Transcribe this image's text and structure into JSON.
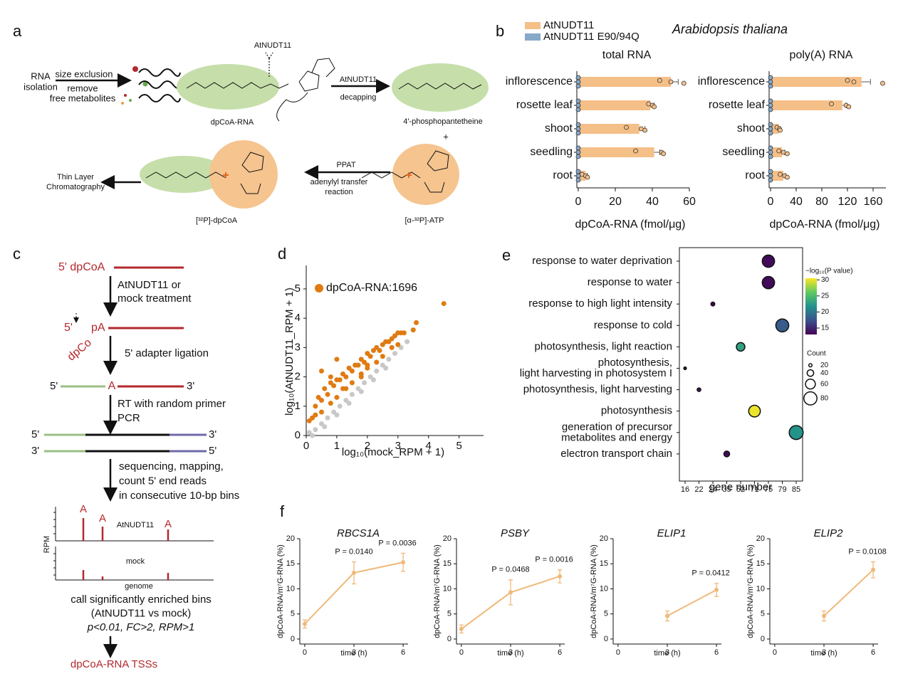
{
  "panel_labels": [
    "a",
    "b",
    "c",
    "d",
    "e",
    "f"
  ],
  "panel_a": {
    "rna_isolation": [
      "RNA",
      "isolation"
    ],
    "size_exclusion": "size exclusion",
    "remove_free_metabolites": [
      "remove",
      "free metabolites"
    ],
    "enzyme_top": "AtNUDT11",
    "dpcoa_rna": "dpCoA-RNA",
    "enzyme_arrow": "AtNUDT11",
    "decapping": "decapping",
    "product": "4'-phosphopantetheine",
    "plus": "+",
    "tlc": [
      "Thin Layer",
      "Chromatography"
    ],
    "ppat": "PPAT",
    "reaction": [
      "adenylyl transfer",
      "reaction"
    ],
    "labeled_dpcoa": "[³²P]-dpCoA",
    "labeled_atp": "[α-³²P]-ATP"
  },
  "panel_b_title": "Arabidopsis thaliana",
  "panel_c": {
    "start": "5' dpCoA",
    "step1": [
      "AtNUDT11 or",
      "mock treatment"
    ],
    "cap_5": "5'",
    "cap_dpco": "dpCo",
    "cap_pa": "pA",
    "step2": "5' adapter ligation",
    "lig_5": "5'",
    "lig_a": "A",
    "lig_3": "3'",
    "step3": [
      "RT with random primer",
      "PCR"
    ],
    "ds_top_5": "5'",
    "ds_top_3": "3'",
    "ds_bot_3": "3'",
    "ds_bot_5": "5'",
    "step4": [
      "sequencing, mapping,",
      "count 5' end reads",
      "in consecutive 10-bp bins"
    ],
    "peak_labels": [
      "A",
      "A",
      "A"
    ],
    "track1": "AtNUDT11",
    "ylabel": "RPM",
    "track2": "mock",
    "xlabel": "genome",
    "step5": [
      "call significantly enriched bins",
      "(AtNUDT11 vs mock)",
      "p<0.01, FC>2, RPM>1"
    ],
    "result": "dpCoA-RNA TSSs"
  },
  "chart_data": [
    {
      "type": "bar",
      "orientation": "horizontal",
      "title": "total RNA",
      "xlabel": "dpCoA-RNA (fmol/μg)",
      "categories": [
        "inflorescence",
        "rosette leaf",
        "shoot",
        "seedling",
        "root"
      ],
      "series": [
        {
          "name": "AtNUDT11",
          "color": "#f5bf88",
          "values": [
            50,
            39,
            33,
            41,
            4
          ],
          "errors": [
            4,
            2,
            3,
            3,
            1
          ],
          "points": [
            [
              44,
              50,
              57
            ],
            [
              38,
              40,
              41
            ],
            [
              26,
              34,
              36
            ],
            [
              31,
              45,
              46
            ],
            [
              2,
              4,
              5
            ]
          ]
        },
        {
          "name": "AtNUDT11 E90/94Q",
          "color": "#86a8c9",
          "values": [
            0,
            0,
            0,
            0,
            0
          ],
          "points": [
            [
              0,
              0,
              0
            ],
            [
              0,
              0,
              0
            ],
            [
              0,
              0,
              0
            ],
            [
              0,
              0,
              0
            ],
            [
              0,
              0,
              0
            ]
          ]
        }
      ],
      "xlim": [
        0,
        60
      ],
      "xticks": [
        0,
        20,
        40,
        60
      ]
    },
    {
      "type": "bar",
      "orientation": "horizontal",
      "title": "poly(A) RNA",
      "xlabel": "dpCoA-RNA (fmol/μg)",
      "categories": [
        "inflorescence",
        "rosette leaf",
        "shoot",
        "seedling",
        "root"
      ],
      "series": [
        {
          "color": "#f5bf88",
          "values": [
            142,
            112,
            13,
            18,
            20
          ],
          "errors": [
            14,
            6,
            2,
            4,
            3
          ],
          "points": [
            [
              120,
              130,
              175
            ],
            [
              95,
              118,
              122
            ],
            [
              10,
              14,
              15
            ],
            [
              13,
              20,
              26
            ],
            [
              15,
              22,
              26
            ]
          ]
        },
        {
          "color": "#86a8c9",
          "values": [
            0,
            0,
            0,
            0,
            0
          ],
          "points": [
            [
              0,
              0,
              0
            ],
            [
              0,
              0,
              0
            ],
            [
              0,
              0,
              0
            ],
            [
              0,
              0,
              0
            ],
            [
              0,
              0,
              0
            ]
          ]
        }
      ],
      "xlim": [
        0,
        180
      ],
      "xticks": [
        0,
        40,
        80,
        120,
        160
      ]
    },
    {
      "type": "scatter",
      "xlabel": "log₁₀(mock_RPM + 1)",
      "ylabel": "log₁₀(AtNUDT11_RPM + 1)",
      "series": [
        {
          "name": "dpCoA-RNA:1696",
          "color": "#e07b12",
          "x": [
            0.3,
            0.4,
            0.5,
            0.6,
            0.7,
            0.8,
            0.9,
            1.0,
            1.1,
            1.2,
            1.3,
            1.4,
            1.5,
            1.6,
            1.7,
            1.8,
            1.9,
            2.0,
            2.1,
            2.2,
            2.3,
            2.4,
            2.5,
            2.6,
            2.7,
            2.8,
            2.9,
            3.0,
            3.1,
            3.2,
            0.5,
            0.8,
            1.0,
            1.2,
            1.5,
            1.8,
            2.0,
            3.5,
            3.6,
            4.5,
            0.2,
            0.5,
            1.0,
            1.5,
            2.0,
            2.5,
            3.0,
            0.1,
            0.3,
            0.8,
            1.3,
            1.8,
            2.3,
            2.8
          ],
          "y": [
            1.0,
            1.3,
            1.2,
            1.6,
            1.4,
            1.8,
            1.7,
            1.9,
            1.9,
            2.1,
            2.0,
            2.3,
            2.2,
            2.4,
            2.4,
            2.6,
            2.5,
            2.8,
            2.7,
            2.9,
            3.0,
            2.9,
            3.1,
            3.2,
            3.2,
            3.3,
            3.4,
            3.5,
            3.5,
            3.5,
            2.2,
            2.0,
            2.6,
            1.6,
            1.8,
            2.1,
            2.4,
            3.6,
            3.85,
            4.5,
            0.6,
            0.8,
            1.3,
            1.8,
            2.3,
            2.7,
            3.1,
            0.5,
            0.7,
            1.1,
            1.6,
            2.0,
            2.5,
            3.0
          ]
        },
        {
          "color": "#c8c8c8",
          "x": [
            0.1,
            0.3,
            0.5,
            0.7,
            0.9,
            1.1,
            1.3,
            1.5,
            1.7,
            1.9,
            2.1,
            2.3,
            2.5,
            2.7,
            2.9,
            3.1,
            3.3,
            0.2,
            0.6,
            1.0,
            1.4,
            1.8,
            2.2,
            2.6
          ],
          "y": [
            0.1,
            0.2,
            0.4,
            0.6,
            0.8,
            1.0,
            1.2,
            1.4,
            1.6,
            1.8,
            2.0,
            2.2,
            2.4,
            2.6,
            2.8,
            3.0,
            3.2,
            0.0,
            0.3,
            0.7,
            1.1,
            1.5,
            1.9,
            2.3
          ]
        }
      ],
      "xlim": [
        0,
        5.8
      ],
      "ylim": [
        0,
        5.8
      ],
      "xticks": [
        0,
        1,
        2,
        3,
        4,
        5
      ],
      "yticks": [
        0,
        1,
        2,
        3,
        4,
        5
      ]
    },
    {
      "type": "bubble",
      "categories": [
        [
          "response to water deprivation"
        ],
        [
          "response to water"
        ],
        [
          "response to high light intensity"
        ],
        [
          "response to cold"
        ],
        [
          "photosynthesis, light reaction"
        ],
        [
          "photosynthesis,",
          "light harvesting in photosystem I"
        ],
        [
          "photosynthesis, light harvesting"
        ],
        [
          "photosynthesis"
        ],
        [
          "generation of precursor",
          "metabolites and energy"
        ],
        [
          "electron transport chain"
        ]
      ],
      "x": [
        75,
        75,
        24,
        79,
        52,
        16,
        22,
        71,
        85,
        35
      ],
      "pvalues": [
        13.5,
        13.5,
        13.2,
        18,
        23,
        13.2,
        14,
        30,
        22,
        13.5
      ],
      "xticks": [
        16,
        22,
        24,
        35,
        52,
        71,
        75,
        79,
        85
      ],
      "xlabel": "gene number",
      "color_label": "−log₁₀(P value)",
      "clim": [
        13,
        30.5
      ],
      "cticks": [
        15,
        20,
        25,
        30
      ],
      "size_label": "Count",
      "size_legend": [
        20,
        40,
        60,
        80
      ]
    },
    {
      "type": "line",
      "title": "RBCS1A",
      "x": [
        0,
        3,
        6
      ],
      "values": [
        3,
        13.2,
        15.3
      ],
      "errors": [
        0.8,
        2.2,
        1.8
      ],
      "color": "#f0b97a",
      "xlim": [
        -0.3,
        6.3
      ],
      "xticks": [
        0,
        3,
        6
      ],
      "ylim": [
        -1,
        20
      ],
      "yticks": [
        0,
        5,
        10,
        15,
        20
      ],
      "xlabel": "time (h)",
      "ylabel": "dpCoA-RNA/m⁷G-RNA (%)",
      "annotations": [
        "P = 0.0140",
        "P = 0.0036"
      ]
    },
    {
      "type": "line",
      "title": "PSBY",
      "x": [
        0,
        3,
        6
      ],
      "values": [
        2,
        9.3,
        12.5
      ],
      "errors": [
        0.8,
        2.5,
        1.3
      ],
      "color": "#f0b97a",
      "xlim": [
        -0.3,
        6.3
      ],
      "xticks": [
        0,
        3,
        6
      ],
      "ylim": [
        -1,
        20
      ],
      "yticks": [
        0,
        5,
        10,
        15,
        20
      ],
      "xlabel": "time (h)",
      "ylabel": "dpCoA-RNA/m⁷G-RNA (%)",
      "annotations": [
        "P = 0.0468",
        "P = 0.0016"
      ]
    },
    {
      "type": "line",
      "title": "ELIP1",
      "x": [
        0,
        3,
        6
      ],
      "values": [
        null,
        4.6,
        9.8
      ],
      "errors": [
        null,
        1,
        1.3
      ],
      "color": "#f0b97a",
      "xlim": [
        -0.3,
        6.3
      ],
      "xticks": [
        0,
        3,
        6
      ],
      "ylim": [
        -1,
        20
      ],
      "yticks": [
        0,
        5,
        10,
        15,
        20
      ],
      "xlabel": "time (h)",
      "ylabel": "dpCoA-RNA/m⁷G-RNA (%)",
      "annotations": [
        "P = 0.0412"
      ]
    },
    {
      "type": "line",
      "title": "ELIP2",
      "x": [
        0,
        3,
        6
      ],
      "values": [
        null,
        4.6,
        13.8
      ],
      "errors": [
        null,
        1,
        1.6
      ],
      "color": "#f0b97a",
      "xlim": [
        -0.3,
        6.3
      ],
      "xticks": [
        0,
        3,
        6
      ],
      "ylim": [
        -1,
        20
      ],
      "yticks": [
        0,
        5,
        10,
        15,
        20
      ],
      "xlabel": "time (h)",
      "ylabel": "dpCoA-RNA/m⁷G-RNA (%)",
      "annotations": [
        "P = 0.0108"
      ]
    }
  ]
}
